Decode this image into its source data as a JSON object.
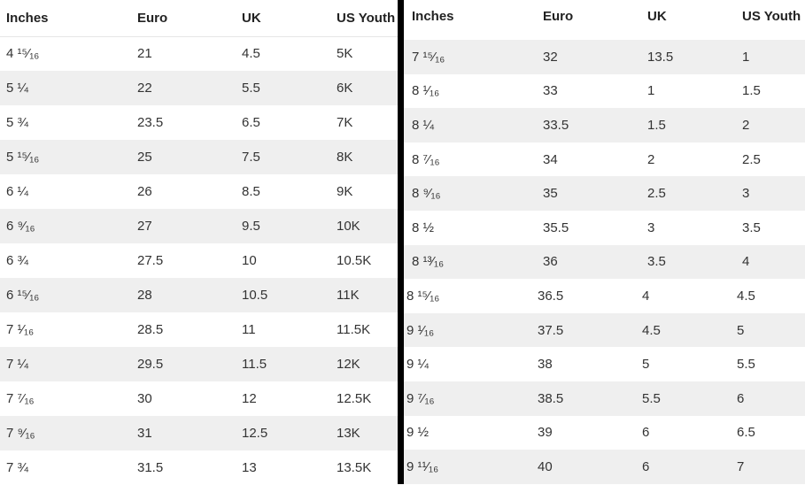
{
  "left_table": {
    "headers": [
      "Inches",
      "Euro",
      "UK",
      "US Youth"
    ],
    "rows": [
      [
        "4 ¹⁵⁄₁₆",
        "21",
        "4.5",
        "5K"
      ],
      [
        "5 ¼",
        "22",
        "5.5",
        "6K"
      ],
      [
        "5 ¾",
        "23.5",
        "6.5",
        "7K"
      ],
      [
        "5 ¹⁵⁄₁₆",
        "25",
        "7.5",
        "8K"
      ],
      [
        "6 ¼",
        "26",
        "8.5",
        "9K"
      ],
      [
        "6 ⁹⁄₁₆",
        "27",
        "9.5",
        "10K"
      ],
      [
        "6 ¾",
        "27.5",
        "10",
        "10.5K"
      ],
      [
        "6 ¹⁵⁄₁₆",
        "28",
        "10.5",
        "11K"
      ],
      [
        "7 ¹⁄₁₆",
        "28.5",
        "11",
        "11.5K"
      ],
      [
        "7 ¼",
        "29.5",
        "11.5",
        "12K"
      ],
      [
        "7 ⁷⁄₁₆",
        "30",
        "12",
        "12.5K"
      ],
      [
        "7 ⁹⁄₁₆",
        "31",
        "12.5",
        "13K"
      ],
      [
        "7 ¾",
        "31.5",
        "13",
        "13.5K"
      ]
    ]
  },
  "right_table": {
    "headers": [
      "Inches",
      "Euro",
      "UK",
      "US Youth"
    ],
    "rows": [
      [
        "7 ¹⁵⁄₁₆",
        "32",
        "13.5",
        "1"
      ],
      [
        "8 ¹⁄₁₆",
        "33",
        "1",
        "1.5"
      ],
      [
        "8 ¼",
        "33.5",
        "1.5",
        "2"
      ],
      [
        "8 ⁷⁄₁₆",
        "34",
        "2",
        "2.5"
      ],
      [
        "8 ⁹⁄₁₆",
        "35",
        "2.5",
        "3"
      ],
      [
        "8 ½",
        "35.5",
        "3",
        "3.5"
      ],
      [
        "8 ¹³⁄₁₆",
        "36",
        "3.5",
        "4"
      ],
      [
        "8 ¹⁵⁄₁₆",
        "36.5",
        "4",
        "4.5"
      ],
      [
        "9 ¹⁄₁₆",
        "37.5",
        "4.5",
        "5"
      ],
      [
        "9 ¼",
        "38",
        "5",
        "5.5"
      ],
      [
        "9 ⁷⁄₁₆",
        "38.5",
        "5.5",
        "6"
      ],
      [
        "9 ½",
        "39",
        "6",
        "6.5"
      ],
      [
        "9 ¹¹⁄₁₆",
        "40",
        "6",
        "7"
      ]
    ]
  },
  "colors": {
    "alt_row": "#efefef",
    "divider": "#000000",
    "text": "#222222"
  }
}
